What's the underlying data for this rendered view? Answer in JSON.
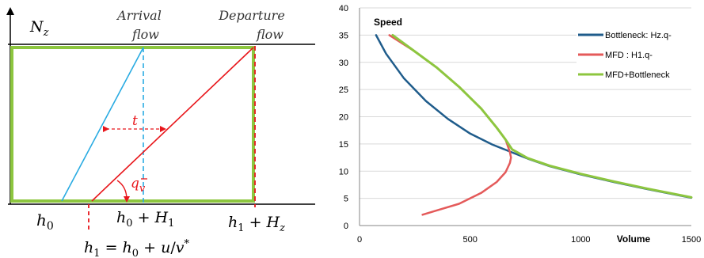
{
  "left_diagram": {
    "y_axis_label": "N_z",
    "arrival_label_1": "Arrival",
    "arrival_label_2": "flow",
    "departure_label_1": "Departure",
    "departure_label_2": "flow",
    "t_label": "t",
    "q_label": "q",
    "q_sub": "v",
    "h0_label": "h₀",
    "h0H1_label": "h₀ + H₁",
    "h1Hz_label": "h₁ + H_z",
    "h1_label": "h₁ = h₀ + u/v*",
    "colors": {
      "box": "#8dc63f",
      "arrival": "#29abe2",
      "departure": "#e8161b",
      "axis": "#000000"
    }
  },
  "chart_data": {
    "type": "line",
    "title": "Speed",
    "xlabel": "Volume",
    "ylabel": "",
    "xlim": [
      0,
      1500
    ],
    "ylim": [
      0,
      40
    ],
    "x_ticks": [
      0,
      500,
      1000,
      1500
    ],
    "y_ticks": [
      0,
      5,
      10,
      15,
      20,
      25,
      30,
      35,
      40
    ],
    "grid": "horizontal",
    "legend_position": "right",
    "series": [
      {
        "name": "Bottleneck: Hz.q-",
        "color": "#1f5c8b",
        "x": [
          75,
          120,
          200,
          300,
          400,
          500,
          600,
          680,
          760,
          860,
          1000,
          1150,
          1300,
          1500
        ],
        "y": [
          35,
          31.6,
          27.1,
          22.9,
          19.6,
          16.9,
          14.9,
          13.6,
          12.3,
          10.9,
          9.4,
          8.0,
          6.7,
          5.1
        ]
      },
      {
        "name": "MFD : H1.q-",
        "color": "#e45a5a",
        "x": [
          135,
          250,
          350,
          450,
          550,
          620,
          660,
          680,
          685,
          680,
          660,
          620,
          550,
          450,
          350,
          285
        ],
        "y": [
          35,
          32,
          29,
          25.5,
          21.5,
          18,
          15.8,
          13.5,
          12.5,
          11.5,
          9.8,
          8,
          6,
          4,
          2.8,
          2
        ]
      },
      {
        "name": "MFD+Bottleneck",
        "color": "#8dc63f",
        "x": [
          150,
          250,
          350,
          450,
          550,
          620,
          660,
          690,
          760,
          860,
          1000,
          1150,
          1300,
          1500
        ],
        "y": [
          35,
          32,
          29,
          25.5,
          21.5,
          18,
          15.8,
          14,
          12.4,
          11.0,
          9.5,
          8.1,
          6.8,
          5.2
        ]
      }
    ]
  }
}
